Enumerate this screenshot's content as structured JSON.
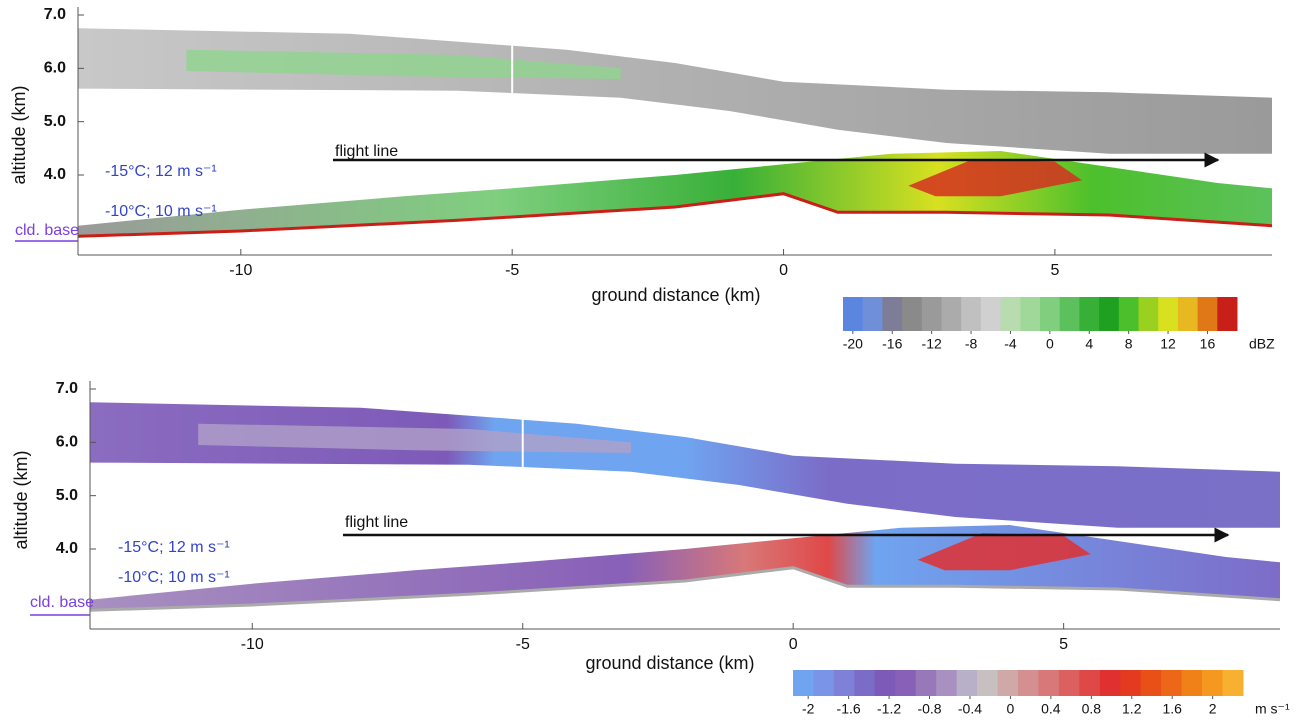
{
  "chart_data": [
    {
      "type": "heatmap",
      "xlabel": "ground distance (km)",
      "ylabel": "altitude (km)",
      "xlim": [
        -13,
        9
      ],
      "ylim": [
        2.5,
        7.0
      ],
      "xticks": [
        -10,
        -5,
        0,
        5
      ],
      "yticks": [
        {
          "value": 4,
          "label": "4.0"
        },
        {
          "value": 5,
          "label": "5.0"
        },
        {
          "value": 6,
          "label": "6.0"
        },
        {
          "value": 7,
          "label": "7.0"
        }
      ],
      "annotations": [
        "flight line",
        "-15°C; 12 m s⁻¹",
        "-10°C; 10 m s⁻¹",
        "cld. base"
      ],
      "colorbar": {
        "clim": [
          -21,
          19
        ],
        "ticks": [
          -20,
          -16,
          -12,
          -8,
          -4,
          0,
          4,
          8,
          12,
          16
        ],
        "label": "dBZ",
        "colors": [
          "#5b86e0",
          "#6f8fd8",
          "#7d7d98",
          "#8a8a8a",
          "#9a9a9a",
          "#ababab",
          "#c0c0c0",
          "#d0d0d0",
          "#b8dcb0",
          "#a0d89a",
          "#7fcf7f",
          "#5cc15c",
          "#38b038",
          "#20a020",
          "#4cc02c",
          "#9ad020",
          "#d8e020",
          "#e8b820",
          "#e07818",
          "#c82018"
        ]
      }
    },
    {
      "type": "heatmap",
      "xlabel": "ground distance (km)",
      "ylabel": "altitude (km)",
      "xlim": [
        -13,
        9
      ],
      "ylim": [
        2.5,
        7.0
      ],
      "xticks": [
        -10,
        -5,
        0,
        5
      ],
      "yticks": [
        {
          "value": 4,
          "label": "4.0"
        },
        {
          "value": 5,
          "label": "5.0"
        },
        {
          "value": 6,
          "label": "6.0"
        },
        {
          "value": 7,
          "label": "7.0"
        }
      ],
      "annotations": [
        "flight line",
        "-15°C; 12 m s⁻¹",
        "-10°C; 10 m s⁻¹",
        "cld. base"
      ],
      "colorbar": {
        "clim": [
          -2.15,
          2.3
        ],
        "ticks": [
          -2,
          -1.6,
          -1.2,
          -0.8,
          -0.4,
          0,
          0.4,
          0.8,
          1.2,
          1.6,
          2
        ],
        "label": "m s⁻¹",
        "colors": [
          "#6fa4f0",
          "#7a94e8",
          "#7f80d8",
          "#7b6cc8",
          "#7d5ab8",
          "#8860b8",
          "#9878b8",
          "#a890c0",
          "#b8b0c8",
          "#c8c0c0",
          "#d0a8a8",
          "#d49090",
          "#d87878",
          "#dc6060",
          "#e04848",
          "#e03030",
          "#e43a20",
          "#e85018",
          "#ec6818",
          "#f08018",
          "#f49820",
          "#f8b030"
        ]
      }
    }
  ]
}
